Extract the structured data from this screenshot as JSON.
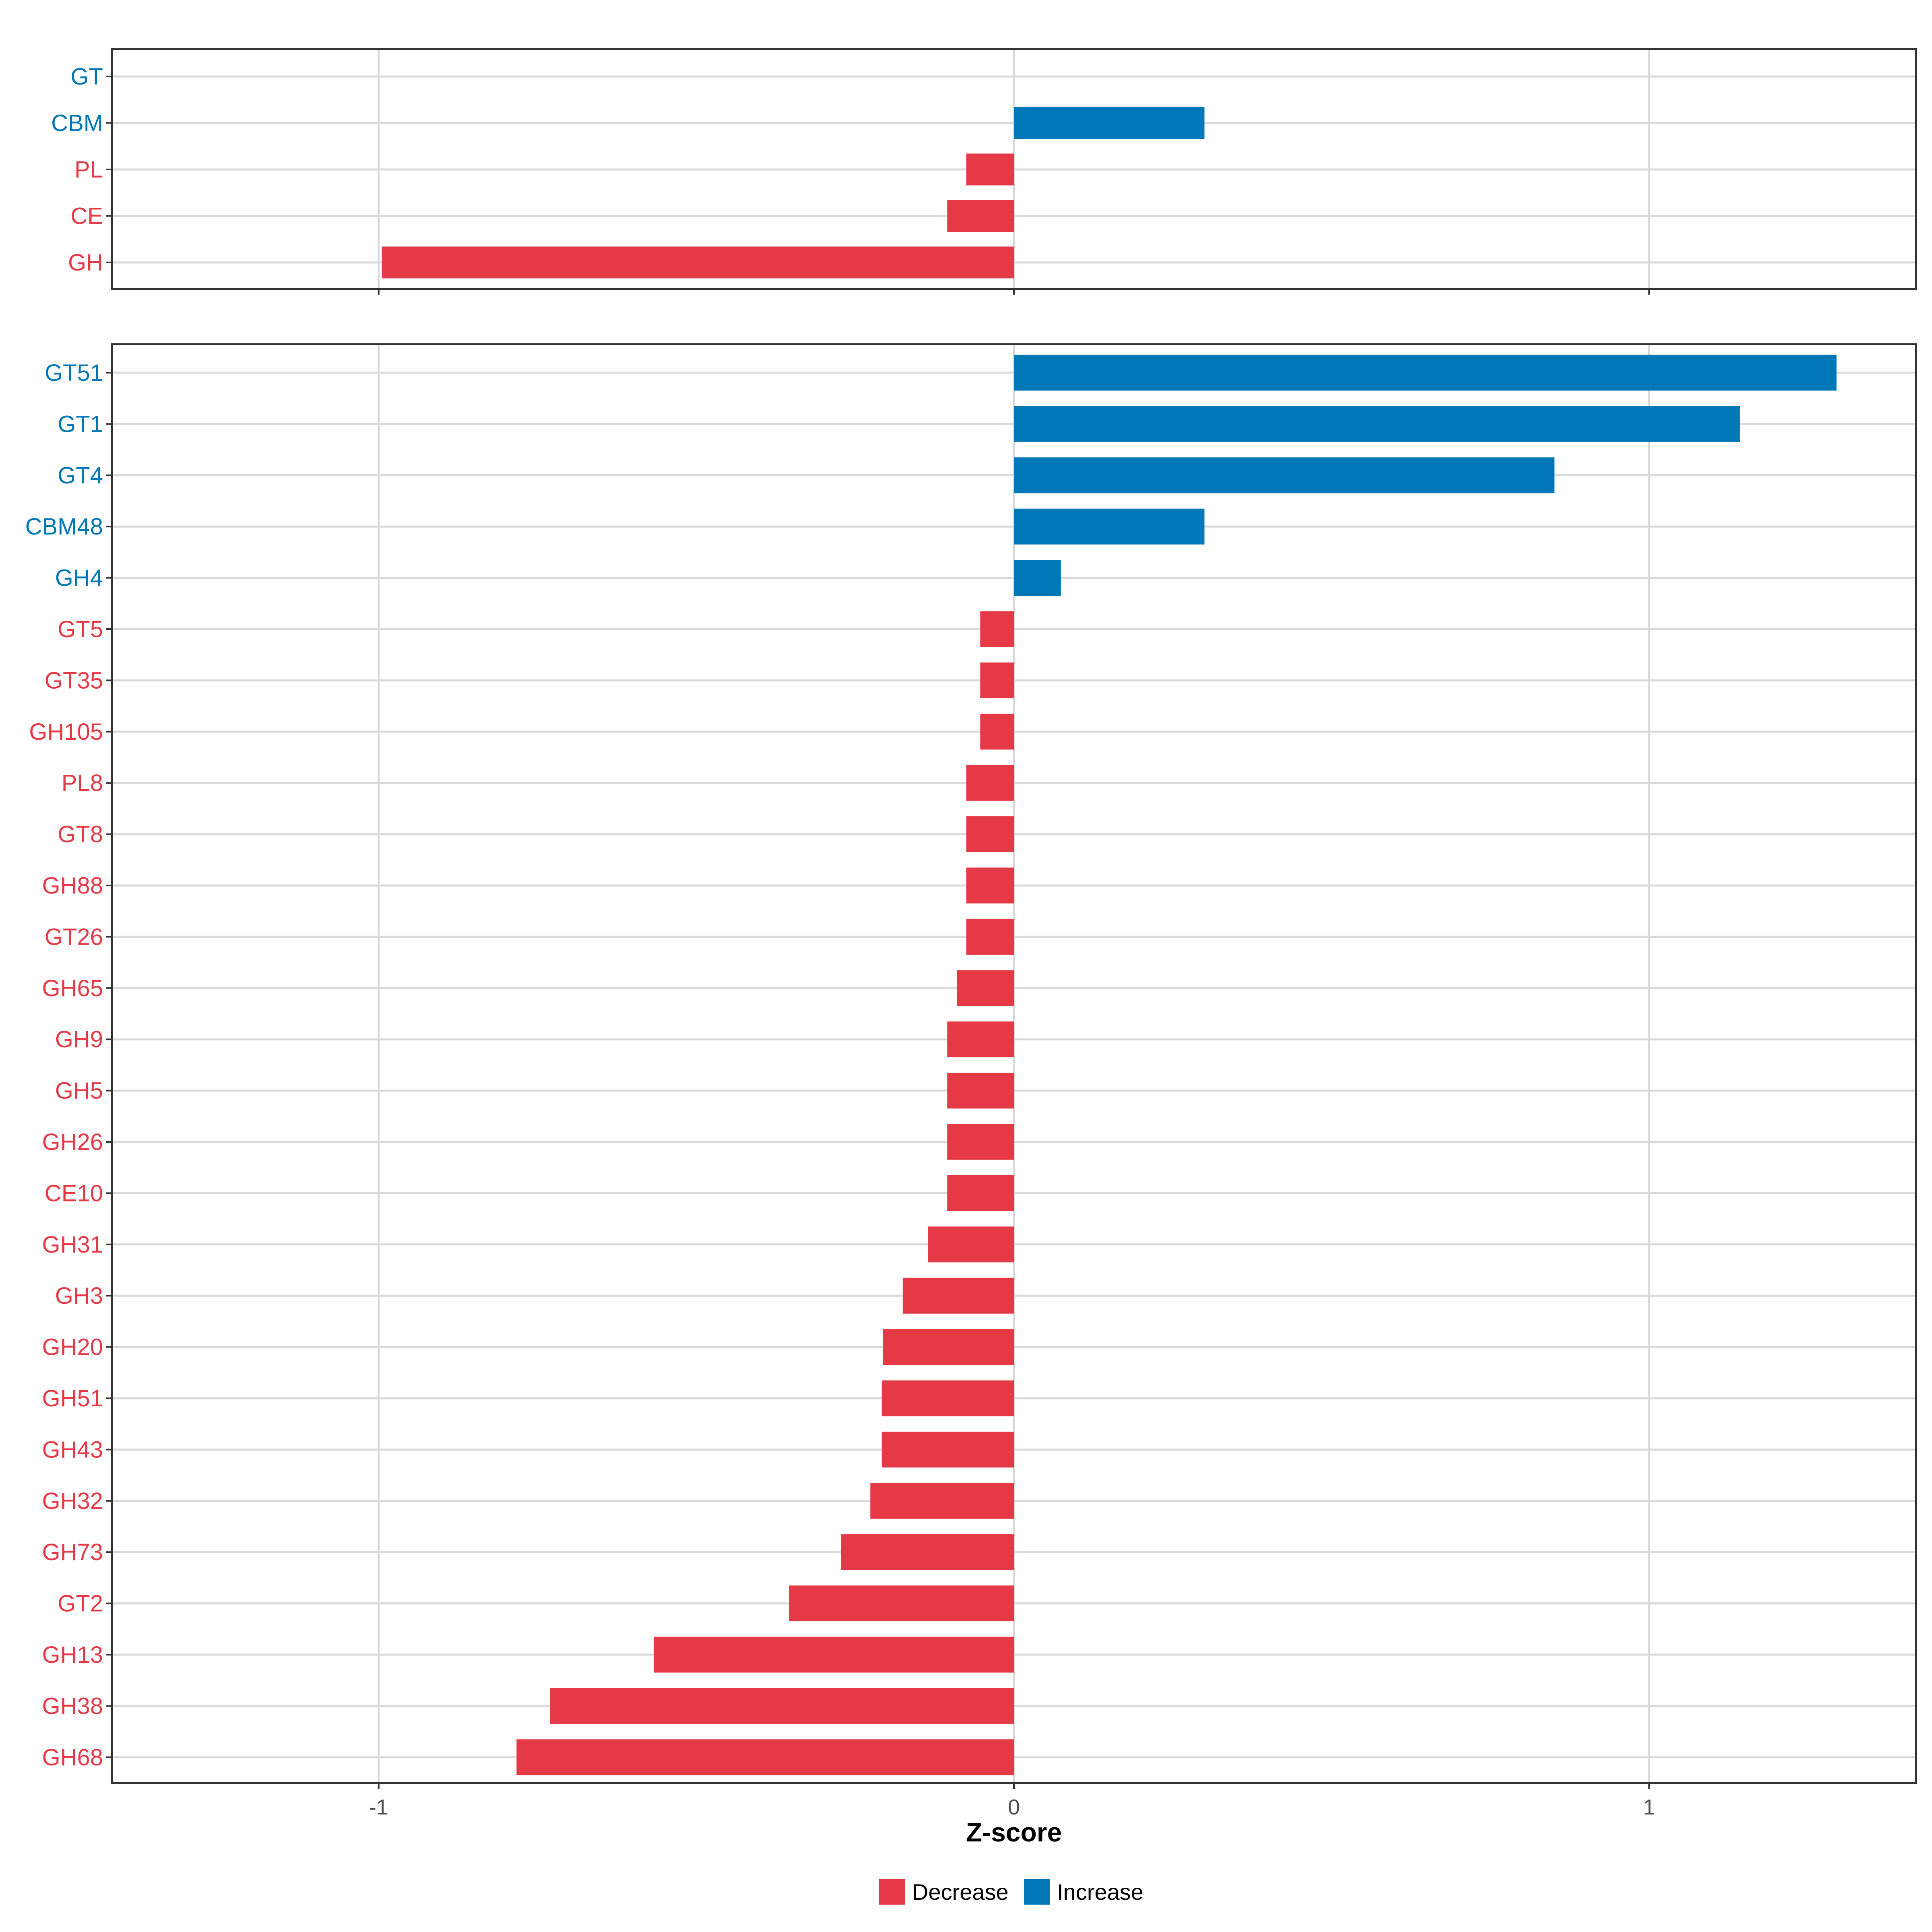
{
  "chart_data": {
    "type": "bar",
    "orientation": "horizontal",
    "xlabel": "Z-score",
    "xlim": [
      -1.42,
      1.42
    ],
    "x_ticks": [
      {
        "value": -1,
        "label": "-1"
      },
      {
        "value": 0,
        "label": "0"
      },
      {
        "value": 1,
        "label": "1"
      }
    ],
    "colors": {
      "Decrease": "#e63946",
      "Increase": "#0077b6"
    },
    "legend": [
      {
        "key": "Decrease",
        "label": "Decrease"
      },
      {
        "key": "Increase",
        "label": "Increase"
      }
    ],
    "panels": [
      {
        "name": "family",
        "categories": [
          "GT",
          "CBM",
          "PL",
          "CE",
          "GH"
        ],
        "values": [
          0,
          0.3,
          -0.075,
          -0.105,
          -0.995
        ],
        "direction": [
          "Increase",
          "Increase",
          "Decrease",
          "Decrease",
          "Decrease"
        ]
      },
      {
        "name": "subfamily",
        "categories": [
          "GT51",
          "GT1",
          "GT4",
          "CBM48",
          "GH4",
          "GT5",
          "GT35",
          "GH105",
          "PL8",
          "GT8",
          "GH88",
          "GT26",
          "GH65",
          "GH9",
          "GH5",
          "GH26",
          "CE10",
          "GH31",
          "GH3",
          "GH20",
          "GH51",
          "GH43",
          "GH32",
          "GH73",
          "GT2",
          "GH13",
          "GH38",
          "GH68"
        ],
        "values": [
          1.295,
          1.143,
          0.851,
          0.3,
          0.074,
          -0.053,
          -0.053,
          -0.053,
          -0.075,
          -0.075,
          -0.075,
          -0.075,
          -0.09,
          -0.105,
          -0.105,
          -0.105,
          -0.105,
          -0.135,
          -0.175,
          -0.206,
          -0.208,
          -0.208,
          -0.226,
          -0.272,
          -0.354,
          -0.567,
          -0.73,
          -0.783
        ],
        "direction": [
          "Increase",
          "Increase",
          "Increase",
          "Increase",
          "Increase",
          "Decrease",
          "Decrease",
          "Decrease",
          "Decrease",
          "Decrease",
          "Decrease",
          "Decrease",
          "Decrease",
          "Decrease",
          "Decrease",
          "Decrease",
          "Decrease",
          "Decrease",
          "Decrease",
          "Decrease",
          "Decrease",
          "Decrease",
          "Decrease",
          "Decrease",
          "Decrease",
          "Decrease",
          "Decrease",
          "Decrease"
        ]
      }
    ]
  }
}
